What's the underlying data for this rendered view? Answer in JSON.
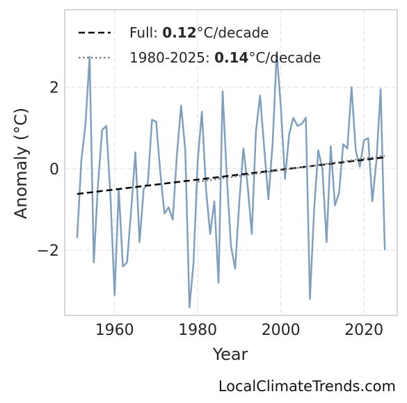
{
  "watermark": "LocalClimateTrends.com",
  "chart_data": {
    "type": "line",
    "xlabel": "Year",
    "ylabel": "Anomaly (°C)",
    "xlim": [
      1948,
      2028
    ],
    "ylim": [
      -3.6,
      3.9
    ],
    "xticks": [
      1960,
      1980,
      2000,
      2020
    ],
    "yticks": [
      -2,
      0,
      2
    ],
    "ytick_labels": [
      "−2",
      "0",
      "2"
    ],
    "grid": true,
    "legend_position": "top-left",
    "colors": {
      "series": "#7f9fbf",
      "full_trend": "#000000",
      "recent_trend": "#808080"
    },
    "series": [
      {
        "x": [
          1951,
          1952,
          1953,
          1954,
          1955,
          1956,
          1957,
          1958,
          1959,
          1960,
          1961,
          1962,
          1963,
          1964,
          1965,
          1966,
          1967,
          1968,
          1969,
          1970,
          1971,
          1972,
          1973,
          1974,
          1975,
          1976,
          1977,
          1978,
          1979,
          1980,
          1981,
          1982,
          1983,
          1984,
          1985,
          1986,
          1987,
          1988,
          1989,
          1990,
          1991,
          1992,
          1993,
          1994,
          1995,
          1996,
          1997,
          1998,
          1999,
          2000,
          2001,
          2002,
          2003,
          2004,
          2005,
          2006,
          2007,
          2008,
          2009,
          2010,
          2011,
          2012,
          2013,
          2014,
          2015,
          2016,
          2017,
          2018,
          2019,
          2020,
          2021,
          2022,
          2023,
          2024,
          2025
        ],
        "values": [
          -1.7,
          0.2,
          1.1,
          2.75,
          -2.3,
          -0.4,
          0.95,
          1.05,
          -0.65,
          -3.1,
          -0.5,
          -2.4,
          -2.3,
          -1.0,
          0.4,
          -1.8,
          -0.5,
          -0.35,
          1.2,
          1.15,
          -0.1,
          -1.1,
          -0.95,
          -1.25,
          0.35,
          1.55,
          0.45,
          -3.4,
          -2.3,
          0.2,
          1.4,
          -0.5,
          -1.6,
          -0.8,
          -2.8,
          1.9,
          -0.2,
          -1.9,
          -2.45,
          -0.8,
          0.5,
          -0.4,
          -1.6,
          0.9,
          1.8,
          0.5,
          -0.75,
          0.6,
          2.85,
          1.5,
          -0.25,
          0.85,
          1.25,
          1.05,
          1.1,
          1.25,
          -3.2,
          -1.0,
          0.45,
          0.0,
          -1.8,
          0.55,
          -0.9,
          -0.6,
          0.6,
          0.5,
          2.0,
          0.45,
          0.05,
          0.7,
          0.75,
          -0.8,
          0.2,
          1.95,
          -2.0
        ]
      }
    ],
    "trends": [
      {
        "label_prefix": "Full: ",
        "rate": "0.12",
        "label_suffix": "°C/decade",
        "x": [
          1951,
          2025
        ],
        "y": [
          -0.62,
          0.28
        ],
        "style": "dashed"
      },
      {
        "label_prefix": "1980-2025: ",
        "rate": "0.14",
        "label_suffix": "°C/decade",
        "x": [
          1980,
          2025
        ],
        "y": [
          -0.32,
          0.32
        ],
        "style": "dotted"
      }
    ]
  }
}
